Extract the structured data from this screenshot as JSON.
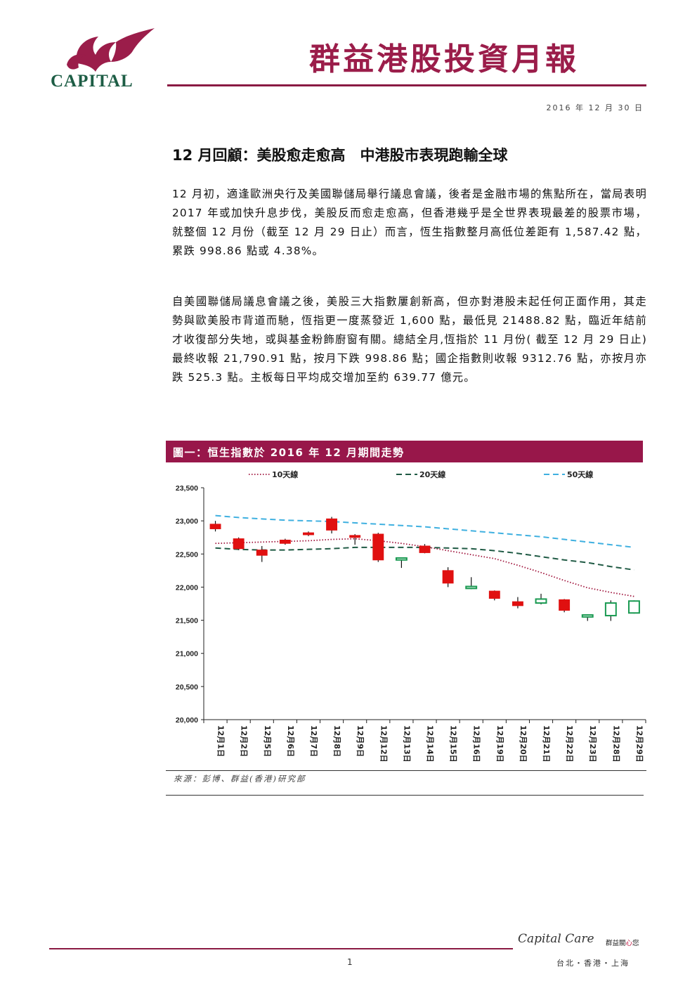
{
  "header": {
    "logo_text": "CAPITAL",
    "title": "群益港股投資月報",
    "date": "2016 年 12 月 30 日"
  },
  "article": {
    "headline": "12 月回顧：美股愈走愈高　中港股市表現跑輸全球",
    "paragraph1": "12 月初，適逢歐洲央行及美國聯儲局舉行議息會議，後者是金融市場的焦點所在，當局表明 2017 年或加快升息步伐，美股反而愈走愈高，但香港幾乎是全世界表現最差的股票市場，就整個 12 月份（截至 12 月 29 日止）而言，恆生指數整月高低位差距有 1,587.42 點，累跌 998.86 點或 4.38%。",
    "paragraph2": "自美國聯儲局議息會議之後，美股三大指數屢創新高，但亦對港股未起任何正面作用，其走勢與歐美股市背道而馳，恆指更一度蒸發近 1,600 點，最低見 21488.82 點，臨近年結前才收復部分失地，或與基金粉飾廚窗有關。總結全月,恆指於 11 月份( 截至 12 月 29 日止)最終收報 21,790.91 點，按月下跌 998.86 點；國企指數則收報 9312.76 點，亦按月亦跌 525.3 點。主板每日平均成交增加至約 639.77 億元。"
  },
  "figure": {
    "title": "圖一：恒生指數於 2016 年 12 月期間走勢",
    "source": "來源：彭博、群益(香港)研究部"
  },
  "footer": {
    "brand": "Capital Care",
    "tagline_a": "群益關",
    "tagline_heart": "心",
    "tagline_b": "您",
    "cities": "台北・香港・上海",
    "page": "1"
  },
  "chart_data": {
    "type": "candlestick",
    "categories": [
      "12月1日",
      "12月2日",
      "12月5日",
      "12月6日",
      "12月7日",
      "12月8日",
      "12月9日",
      "12月12日",
      "12月13日",
      "12月14日",
      "12月15日",
      "12月16日",
      "12月19日",
      "12月20日",
      "12月21日",
      "12月22日",
      "12月23日",
      "12月28日",
      "12月29日"
    ],
    "ylim": [
      20000,
      23500
    ],
    "yticks": [
      20000,
      20500,
      21000,
      21500,
      22000,
      22500,
      23000,
      23500
    ],
    "ytick_labels": [
      "20,000",
      "20,500",
      "21,000",
      "21,500",
      "22,000",
      "22,500",
      "23,000",
      "23,500"
    ],
    "candles": [
      {
        "open": 22950,
        "high": 23000,
        "low": 22840,
        "close": 22880
      },
      {
        "open": 22730,
        "high": 22750,
        "low": 22560,
        "close": 22580
      },
      {
        "open": 22560,
        "high": 22620,
        "low": 22380,
        "close": 22480
      },
      {
        "open": 22710,
        "high": 22730,
        "low": 22640,
        "close": 22660
      },
      {
        "open": 22820,
        "high": 22840,
        "low": 22770,
        "close": 22790
      },
      {
        "open": 23030,
        "high": 23060,
        "low": 22810,
        "close": 22860
      },
      {
        "open": 22780,
        "high": 22800,
        "low": 22640,
        "close": 22750
      },
      {
        "open": 22800,
        "high": 22820,
        "low": 22380,
        "close": 22410
      },
      {
        "open": 22410,
        "high": 22450,
        "low": 22290,
        "close": 22440
      },
      {
        "open": 22620,
        "high": 22650,
        "low": 22510,
        "close": 22520
      },
      {
        "open": 22250,
        "high": 22300,
        "low": 22000,
        "close": 22060
      },
      {
        "open": 21980,
        "high": 22150,
        "low": 21970,
        "close": 22010
      },
      {
        "open": 21940,
        "high": 21950,
        "low": 21800,
        "close": 21830
      },
      {
        "open": 21780,
        "high": 21850,
        "low": 21680,
        "close": 21720
      },
      {
        "open": 21760,
        "high": 21900,
        "low": 21740,
        "close": 21820
      },
      {
        "open": 21810,
        "high": 21820,
        "low": 21620,
        "close": 21650
      },
      {
        "open": 21550,
        "high": 21590,
        "low": 21490,
        "close": 21580
      },
      {
        "open": 21570,
        "high": 21800,
        "low": 21490,
        "close": 21760
      },
      {
        "open": 21610,
        "high": 21800,
        "low": 21600,
        "close": 21790
      }
    ],
    "series": [
      {
        "name": "10天線",
        "style": "dotted",
        "color": "#a0143c",
        "values": [
          22660,
          22670,
          22680,
          22690,
          22700,
          22720,
          22730,
          22700,
          22660,
          22610,
          22550,
          22490,
          22430,
          22330,
          22220,
          22100,
          21990,
          21920,
          21860
        ]
      },
      {
        "name": "20天線",
        "style": "dashed",
        "color": "#1f5a44",
        "values": [
          22590,
          22570,
          22560,
          22560,
          22570,
          22580,
          22600,
          22600,
          22600,
          22600,
          22590,
          22580,
          22550,
          22510,
          22460,
          22410,
          22370,
          22310,
          22260
        ]
      },
      {
        "name": "50天線",
        "style": "dashed",
        "color": "#3fb0e0",
        "values": [
          23080,
          23050,
          23030,
          23010,
          23000,
          22990,
          22970,
          22950,
          22930,
          22910,
          22880,
          22850,
          22820,
          22790,
          22760,
          22720,
          22680,
          22640,
          22600
        ]
      }
    ],
    "up_color": "#1a9a52",
    "down_color": "#e01010",
    "legend_position": "top"
  }
}
